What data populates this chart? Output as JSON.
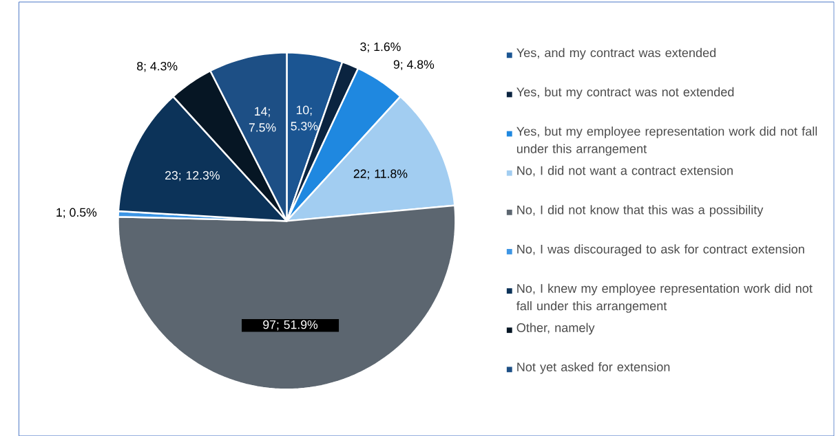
{
  "chart_data": {
    "type": "pie",
    "categories": [
      "Yes, and my contract was extended",
      "Yes, but my contract was not extended",
      "Yes, but my employee representation work did not fall under this arrangement",
      "No, I did not want a contract extension",
      "No, I did not know that this was a possibility",
      "No, I was discouraged to ask for contract extension",
      "No, I knew my employee representation work did not fall under this arrangement",
      "Other, namely",
      "Not yet asked for extension"
    ],
    "values": [
      10,
      3,
      9,
      22,
      97,
      1,
      23,
      8,
      14
    ],
    "colors": [
      "#1b5592",
      "#0b2440",
      "#1f88e0",
      "#a2cdf1",
      "#5c6670",
      "#3d95e4",
      "#0c3359",
      "#061624",
      "#1d4f85"
    ],
    "value_labels": [
      "10; 5.3%",
      "3; 1.6%",
      "9; 4.8%",
      "22; 11.8%",
      "97; 51.9%",
      "1; 0.5%",
      "23; 12.3%",
      "8; 4.3%",
      "14; 7.5%"
    ],
    "legend": "right"
  }
}
